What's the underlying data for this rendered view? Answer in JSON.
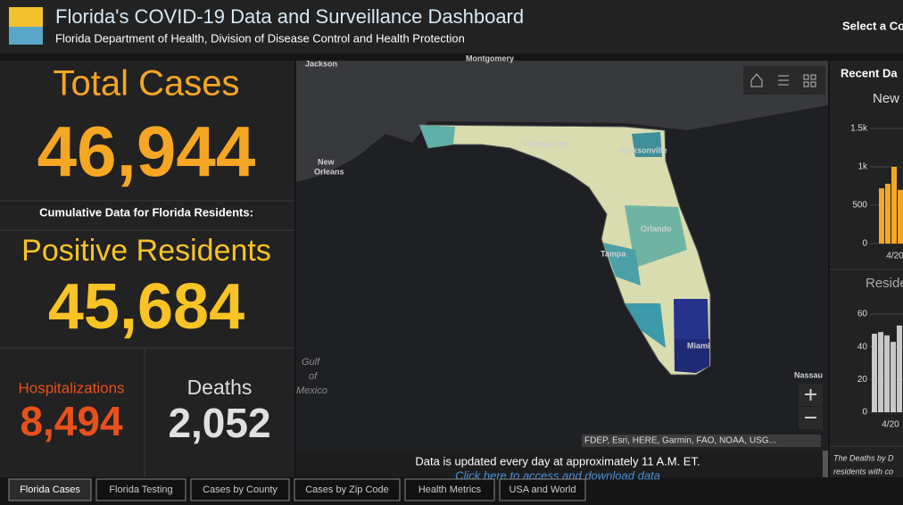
{
  "header": {
    "title": "Florida's COVID-19 Data and Surveillance Dashboard",
    "subtitle": "Florida Department of Health, Division of Disease Control and Health Protection",
    "selector": "Select a Co"
  },
  "summary": {
    "total_cases": {
      "label": "Total Cases",
      "value": "46,944"
    },
    "cumulative_note": "Cumulative Data for Florida Residents:",
    "positive_residents": {
      "label": "Positive Residents",
      "value": "45,684"
    },
    "hospitalizations": {
      "label": "Hospitalizations",
      "value": "8,494"
    },
    "deaths": {
      "label": "Deaths",
      "value": "2,052"
    }
  },
  "map": {
    "labels": [
      "Jackson",
      "Montgomery",
      "New",
      "Orleans",
      "Gulf",
      "of",
      "Mexico",
      "Tallahassee",
      "Jacksonville",
      "Orlando",
      "Tampa",
      "Miami",
      "Nassau"
    ],
    "attribution": "FDEP, Esri, HERE, Garmin, FAO, NOAA, USG...",
    "update_note": "Data is updated every day at approximately 11 A.M. ET.",
    "download_link": "Click here to access and download data"
  },
  "side_panel": {
    "title": "Recent Da",
    "new_cases": {
      "title": "New",
      "ylim": [
        0,
        1500
      ],
      "yticks": [
        0,
        500,
        {
          "value": 1000,
          "label": "1k"
        },
        {
          "value": 1500,
          "label": "1.5k"
        }
      ],
      "x_label": "4/20",
      "values": [
        720,
        780,
        1000,
        700,
        900
      ]
    },
    "residents": {
      "title": "Reside",
      "ylim": [
        0,
        60
      ],
      "yticks": [
        0,
        20,
        40,
        60
      ],
      "x_label": "4/20",
      "values": [
        48,
        49,
        47,
        43,
        53
      ]
    },
    "footnote": [
      "The Deaths by D",
      "residents with co"
    ]
  },
  "tabs": [
    "Florida Cases",
    "Florida Testing",
    "Cases by County",
    "Cases by Zip Code",
    "Health Metrics",
    "USA and World"
  ]
}
